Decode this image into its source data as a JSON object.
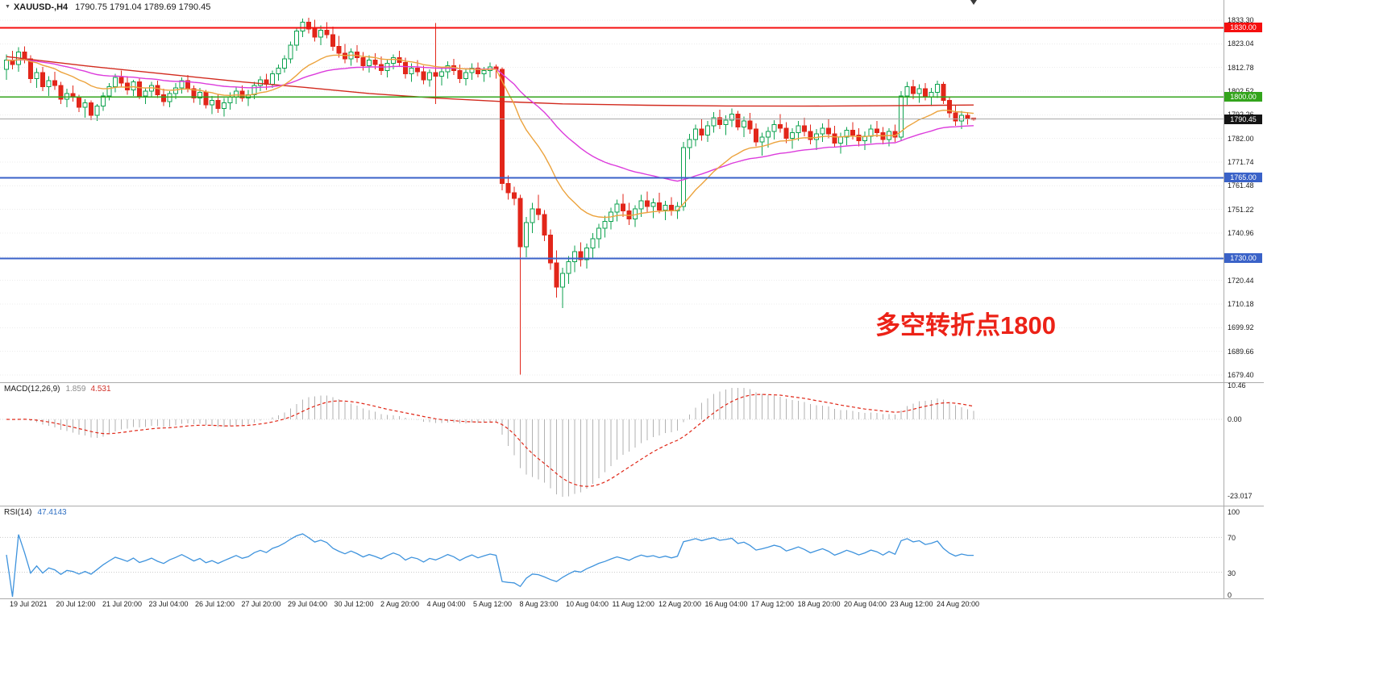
{
  "header": {
    "symbol": "XAUUSD-,H4",
    "ohlc": "1790.75 1791.04 1789.69 1790.45"
  },
  "chart_data": {
    "type": "candlestick",
    "symbol": "XAUUSD-",
    "timeframe": "H4",
    "current_bar": {
      "open": 1790.75,
      "high": 1791.04,
      "low": 1789.69,
      "close": 1790.45
    },
    "y_axis": {
      "top": 1833.3,
      "bottom": 1679.4,
      "labels": [
        "1833.30",
        "1823.04",
        "1812.78",
        "1802.52",
        "1792.26",
        "1782.00",
        "1771.74",
        "1761.48",
        "1751.22",
        "1740.96",
        "1730.70",
        "1720.44",
        "1710.18",
        "1699.92",
        "1689.66",
        "1679.40"
      ]
    },
    "x_labels": [
      "19 Jul 2021",
      "20 Jul 12:00",
      "21 Jul 20:00",
      "23 Jul 04:00",
      "26 Jul 12:00",
      "27 Jul 20:00",
      "29 Jul 04:00",
      "30 Jul 12:00",
      "2 Aug 20:00",
      "4 Aug 04:00",
      "5 Aug 12:00",
      "8 Aug 23:00",
      "10 Aug 04:00",
      "11 Aug 12:00",
      "12 Aug 20:00",
      "16 Aug 04:00",
      "17 Aug 12:00",
      "18 Aug 20:00",
      "20 Aug 04:00",
      "23 Aug 12:00",
      "24 Aug 20:00"
    ],
    "candles": [
      [
        1812.0,
        1818.5,
        1807.5,
        1816.0
      ],
      [
        1816.0,
        1820.0,
        1812.0,
        1814.0
      ],
      [
        1814.0,
        1821.5,
        1811.0,
        1819.5
      ],
      [
        1819.5,
        1822.0,
        1814.5,
        1816.5
      ],
      [
        1816.5,
        1818.0,
        1806.0,
        1808.0
      ],
      [
        1808.0,
        1812.5,
        1804.0,
        1810.5
      ],
      [
        1810.5,
        1813.0,
        1802.5,
        1804.5
      ],
      [
        1804.5,
        1809.0,
        1800.5,
        1807.0
      ],
      [
        1807.0,
        1811.0,
        1803.0,
        1805.0
      ],
      [
        1805.0,
        1806.5,
        1797.0,
        1799.0
      ],
      [
        1799.0,
        1803.5,
        1795.5,
        1801.5
      ],
      [
        1801.5,
        1805.0,
        1798.0,
        1800.0
      ],
      [
        1800.0,
        1801.0,
        1793.5,
        1795.5
      ],
      [
        1795.5,
        1799.0,
        1791.0,
        1797.5
      ],
      [
        1797.5,
        1798.5,
        1790.0,
        1792.0
      ],
      [
        1792.0,
        1797.0,
        1789.5,
        1796.0
      ],
      [
        1796.0,
        1802.0,
        1794.0,
        1800.5
      ],
      [
        1800.5,
        1806.0,
        1798.5,
        1804.5
      ],
      [
        1804.5,
        1810.0,
        1802.0,
        1808.5
      ],
      [
        1808.5,
        1811.5,
        1804.5,
        1806.0
      ],
      [
        1806.0,
        1809.0,
        1801.0,
        1803.0
      ],
      [
        1803.0,
        1807.5,
        1800.5,
        1806.5
      ],
      [
        1806.5,
        1808.0,
        1799.0,
        1800.5
      ],
      [
        1800.5,
        1804.0,
        1797.0,
        1802.5
      ],
      [
        1802.5,
        1806.5,
        1800.0,
        1805.0
      ],
      [
        1805.0,
        1807.0,
        1799.5,
        1801.0
      ],
      [
        1801.0,
        1803.5,
        1796.0,
        1798.0
      ],
      [
        1798.0,
        1802.5,
        1795.5,
        1801.5
      ],
      [
        1801.5,
        1806.0,
        1799.0,
        1804.0
      ],
      [
        1804.0,
        1808.5,
        1801.5,
        1807.0
      ],
      [
        1807.0,
        1809.5,
        1802.0,
        1803.5
      ],
      [
        1803.5,
        1805.0,
        1797.5,
        1799.5
      ],
      [
        1799.5,
        1804.0,
        1796.5,
        1802.0
      ],
      [
        1802.0,
        1803.0,
        1795.0,
        1796.5
      ],
      [
        1796.5,
        1800.5,
        1792.5,
        1798.5
      ],
      [
        1798.5,
        1801.0,
        1793.0,
        1795.0
      ],
      [
        1795.0,
        1799.5,
        1791.5,
        1797.5
      ],
      [
        1797.5,
        1802.0,
        1794.5,
        1800.0
      ],
      [
        1800.0,
        1804.5,
        1797.0,
        1802.5
      ],
      [
        1802.5,
        1805.0,
        1798.0,
        1799.5
      ],
      [
        1799.5,
        1803.0,
        1796.0,
        1801.0
      ],
      [
        1801.0,
        1806.5,
        1799.0,
        1805.0
      ],
      [
        1805.0,
        1809.0,
        1802.5,
        1807.5
      ],
      [
        1807.5,
        1810.0,
        1803.0,
        1805.5
      ],
      [
        1805.5,
        1811.5,
        1804.0,
        1810.0
      ],
      [
        1810.0,
        1814.0,
        1807.0,
        1812.5
      ],
      [
        1812.5,
        1818.0,
        1810.5,
        1816.5
      ],
      [
        1816.5,
        1824.0,
        1814.5,
        1822.5
      ],
      [
        1822.5,
        1830.0,
        1820.0,
        1828.5
      ],
      [
        1828.5,
        1834.0,
        1826.0,
        1832.5
      ],
      [
        1832.5,
        1834.4,
        1827.5,
        1829.5
      ],
      [
        1829.5,
        1833.5,
        1824.0,
        1826.0
      ],
      [
        1826.0,
        1831.0,
        1822.5,
        1829.0
      ],
      [
        1829.0,
        1832.5,
        1825.5,
        1827.0
      ],
      [
        1827.0,
        1830.5,
        1820.0,
        1822.0
      ],
      [
        1822.0,
        1826.5,
        1817.0,
        1819.0
      ],
      [
        1819.0,
        1823.0,
        1814.5,
        1816.5
      ],
      [
        1816.5,
        1821.0,
        1813.5,
        1819.5
      ],
      [
        1819.5,
        1822.5,
        1815.0,
        1817.0
      ],
      [
        1817.0,
        1819.5,
        1811.5,
        1813.5
      ],
      [
        1813.5,
        1818.0,
        1810.5,
        1816.0
      ],
      [
        1816.0,
        1819.0,
        1812.0,
        1814.0
      ],
      [
        1814.0,
        1817.5,
        1809.5,
        1811.5
      ],
      [
        1811.5,
        1816.0,
        1808.5,
        1814.5
      ],
      [
        1814.5,
        1818.5,
        1812.0,
        1817.0
      ],
      [
        1817.0,
        1820.0,
        1813.0,
        1815.0
      ],
      [
        1815.0,
        1817.0,
        1808.0,
        1810.0
      ],
      [
        1810.0,
        1814.5,
        1806.5,
        1812.5
      ],
      [
        1812.5,
        1816.0,
        1809.0,
        1811.0
      ],
      [
        1811.0,
        1813.5,
        1805.5,
        1807.5
      ],
      [
        1807.5,
        1812.0,
        1804.5,
        1810.5
      ],
      [
        1810.5,
        1832.0,
        1797.0,
        1809.0
      ],
      [
        1809.0,
        1813.0,
        1805.0,
        1811.0
      ],
      [
        1811.0,
        1815.5,
        1808.0,
        1813.5
      ],
      [
        1813.5,
        1816.5,
        1809.5,
        1811.5
      ],
      [
        1811.5,
        1814.0,
        1806.0,
        1808.0
      ],
      [
        1808.0,
        1812.5,
        1805.0,
        1810.5
      ],
      [
        1810.5,
        1814.5,
        1807.5,
        1812.5
      ],
      [
        1812.5,
        1815.0,
        1808.5,
        1810.0
      ],
      [
        1810.0,
        1813.0,
        1806.5,
        1811.5
      ],
      [
        1811.5,
        1815.0,
        1808.5,
        1813.0
      ],
      [
        1813.0,
        1814.0,
        1808.0,
        1812.0
      ],
      [
        1812.0,
        1812.8,
        1759.5,
        1762.5
      ],
      [
        1762.5,
        1766.0,
        1755.5,
        1758.5
      ],
      [
        1758.5,
        1761.0,
        1753.0,
        1756.0
      ],
      [
        1756.0,
        1757.5,
        1679.5,
        1735.0
      ],
      [
        1735.0,
        1748.0,
        1730.5,
        1745.5
      ],
      [
        1745.5,
        1754.0,
        1741.0,
        1751.5
      ],
      [
        1751.5,
        1757.5,
        1746.5,
        1749.0
      ],
      [
        1749.0,
        1751.0,
        1737.5,
        1740.0
      ],
      [
        1740.0,
        1742.5,
        1725.0,
        1728.0
      ],
      [
        1728.0,
        1733.5,
        1713.0,
        1717.5
      ],
      [
        1717.5,
        1726.0,
        1708.5,
        1723.5
      ],
      [
        1723.5,
        1731.0,
        1719.0,
        1728.5
      ],
      [
        1728.5,
        1735.5,
        1724.0,
        1733.0
      ],
      [
        1733.0,
        1737.0,
        1726.5,
        1729.5
      ],
      [
        1729.5,
        1736.5,
        1725.5,
        1734.5
      ],
      [
        1734.5,
        1741.0,
        1730.0,
        1738.5
      ],
      [
        1738.5,
        1745.0,
        1734.5,
        1743.0
      ],
      [
        1743.0,
        1748.5,
        1739.0,
        1746.0
      ],
      [
        1746.0,
        1752.0,
        1742.5,
        1750.0
      ],
      [
        1750.0,
        1755.5,
        1746.0,
        1753.5
      ],
      [
        1753.5,
        1758.0,
        1748.0,
        1750.5
      ],
      [
        1750.5,
        1754.0,
        1744.5,
        1747.0
      ],
      [
        1747.0,
        1753.0,
        1743.5,
        1751.5
      ],
      [
        1751.5,
        1757.5,
        1748.0,
        1755.0
      ],
      [
        1755.0,
        1759.0,
        1750.0,
        1752.5
      ],
      [
        1752.5,
        1756.0,
        1747.5,
        1754.0
      ],
      [
        1754.0,
        1758.5,
        1749.5,
        1751.0
      ],
      [
        1751.0,
        1755.0,
        1746.5,
        1753.0
      ],
      [
        1753.0,
        1756.5,
        1748.5,
        1750.5
      ],
      [
        1750.5,
        1754.5,
        1747.0,
        1752.5
      ],
      [
        1752.5,
        1780.5,
        1750.5,
        1778.0
      ],
      [
        1778.0,
        1784.0,
        1773.0,
        1781.5
      ],
      [
        1781.5,
        1788.0,
        1778.5,
        1786.0
      ],
      [
        1786.0,
        1790.5,
        1781.0,
        1783.5
      ],
      [
        1783.5,
        1789.5,
        1780.5,
        1787.5
      ],
      [
        1787.5,
        1793.5,
        1784.5,
        1791.0
      ],
      [
        1791.0,
        1794.5,
        1786.0,
        1788.0
      ],
      [
        1788.0,
        1792.0,
        1783.5,
        1790.0
      ],
      [
        1790.0,
        1795.0,
        1787.0,
        1792.5
      ],
      [
        1792.5,
        1794.0,
        1785.5,
        1787.0
      ],
      [
        1787.0,
        1791.5,
        1782.5,
        1789.5
      ],
      [
        1789.5,
        1793.0,
        1784.0,
        1786.0
      ],
      [
        1786.0,
        1788.5,
        1778.5,
        1780.5
      ],
      [
        1780.5,
        1784.5,
        1774.5,
        1782.5
      ],
      [
        1782.5,
        1787.0,
        1778.0,
        1785.0
      ],
      [
        1785.0,
        1790.0,
        1781.5,
        1788.0
      ],
      [
        1788.0,
        1792.5,
        1784.5,
        1786.5
      ],
      [
        1786.5,
        1789.0,
        1780.0,
        1782.0
      ],
      [
        1782.0,
        1786.5,
        1777.5,
        1784.5
      ],
      [
        1784.5,
        1789.5,
        1781.0,
        1787.5
      ],
      [
        1787.5,
        1791.0,
        1783.0,
        1785.0
      ],
      [
        1785.0,
        1788.0,
        1779.5,
        1781.5
      ],
      [
        1781.5,
        1786.0,
        1777.0,
        1784.0
      ],
      [
        1784.0,
        1788.5,
        1780.5,
        1786.5
      ],
      [
        1786.5,
        1790.5,
        1782.0,
        1784.0
      ],
      [
        1784.0,
        1787.5,
        1778.0,
        1780.0
      ],
      [
        1780.0,
        1784.5,
        1775.5,
        1782.5
      ],
      [
        1782.5,
        1787.0,
        1779.0,
        1785.5
      ],
      [
        1785.5,
        1789.0,
        1781.5,
        1783.5
      ],
      [
        1783.5,
        1786.5,
        1778.5,
        1781.0
      ],
      [
        1781.0,
        1785.0,
        1777.0,
        1783.0
      ],
      [
        1783.0,
        1788.0,
        1780.0,
        1786.0
      ],
      [
        1786.0,
        1789.5,
        1782.5,
        1784.5
      ],
      [
        1784.5,
        1787.0,
        1779.5,
        1781.5
      ],
      [
        1781.5,
        1786.5,
        1778.5,
        1785.0
      ],
      [
        1785.0,
        1788.0,
        1780.5,
        1782.5
      ],
      [
        1782.5,
        1802.5,
        1781.0,
        1800.5
      ],
      [
        1800.5,
        1806.5,
        1796.5,
        1804.5
      ],
      [
        1804.5,
        1807.5,
        1799.0,
        1801.5
      ],
      [
        1801.5,
        1805.5,
        1797.5,
        1803.5
      ],
      [
        1803.5,
        1806.0,
        1798.5,
        1800.0
      ],
      [
        1800.0,
        1804.0,
        1796.0,
        1802.0
      ],
      [
        1802.0,
        1807.0,
        1799.5,
        1805.5
      ],
      [
        1805.5,
        1806.5,
        1797.0,
        1798.5
      ],
      [
        1798.5,
        1800.0,
        1791.0,
        1793.0
      ],
      [
        1793.0,
        1796.5,
        1787.5,
        1789.5
      ],
      [
        1789.5,
        1794.0,
        1786.0,
        1792.0
      ],
      [
        1792.0,
        1793.5,
        1788.0,
        1790.5
      ],
      [
        1790.75,
        1791.04,
        1789.69,
        1790.45
      ]
    ],
    "colors": {
      "bull": "#0da24f",
      "bear": "#e2261a",
      "macd_hist": "#b2b2b2",
      "macd_signal": "#e02616",
      "rsi": "#3e93dd"
    },
    "moving_averages": [
      {
        "name": "ma-fast",
        "period": 18,
        "color": "#eca33d"
      },
      {
        "name": "ma-mid",
        "period": 45,
        "color": "#dc3cdc"
      },
      {
        "name": "ma-slow",
        "color": "#d22a1e",
        "points": [
          [
            0,
            1817.5
          ],
          [
            13,
            1813.5
          ],
          [
            26,
            1810.0
          ],
          [
            39,
            1806.5
          ],
          [
            50,
            1804.0
          ],
          [
            60,
            1801.5
          ],
          [
            71,
            1799.5
          ],
          [
            82,
            1798.0
          ],
          [
            92,
            1797.0
          ],
          [
            106,
            1796.4
          ],
          [
            119,
            1796.1
          ],
          [
            132,
            1796.0
          ],
          [
            146,
            1796.2
          ],
          [
            160,
            1796.5
          ]
        ]
      }
    ],
    "hlines": [
      {
        "label": "1830.00",
        "price": 1830.0,
        "color": "#f50f0f",
        "width": 2
      },
      {
        "label": "1800.00",
        "price": 1800.0,
        "color": "#33a41c",
        "width": 1.5
      },
      {
        "label": "1765.00",
        "price": 1765.0,
        "color": "#3a62c8",
        "width": 2
      },
      {
        "label": "1730.00",
        "price": 1730.0,
        "color": "#3a62c8",
        "width": 2
      }
    ],
    "current_price": {
      "value": 1790.45,
      "label": "1790.45"
    },
    "annotation": {
      "text": "多空转折点1800",
      "color": "#ec2217"
    },
    "indicators": [
      {
        "name": "MACD",
        "title": "MACD(12,26,9)",
        "params": [
          12,
          26,
          9
        ],
        "values": [
          "1.859",
          "4.531"
        ],
        "axis_labels": [
          "10.46",
          "0.00",
          "-23.017"
        ]
      },
      {
        "name": "RSI",
        "title": "RSI(14)",
        "params": [
          14
        ],
        "values": [
          "47.4143"
        ],
        "levels": [
          70,
          30
        ],
        "axis_labels": [
          "100",
          "70",
          "30",
          "0"
        ]
      }
    ]
  }
}
